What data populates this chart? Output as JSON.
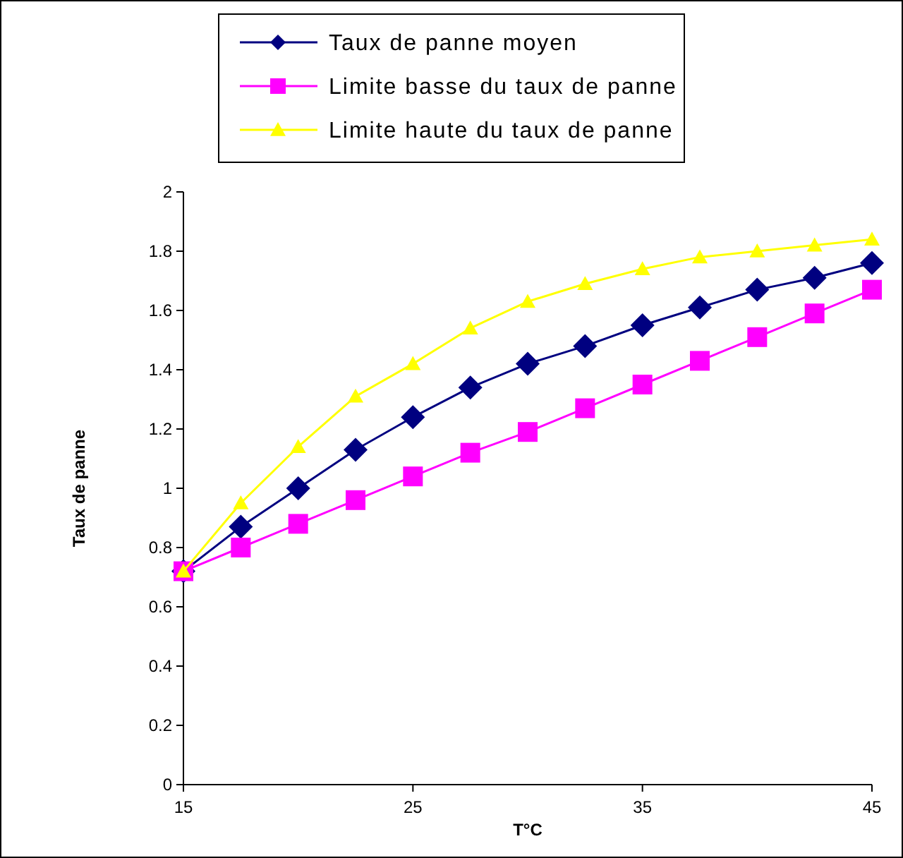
{
  "chart_data": {
    "type": "line",
    "xlabel": "T°C",
    "ylabel": "Taux de panne",
    "x": [
      15,
      17.5,
      20,
      22.5,
      25,
      27.5,
      30,
      32.5,
      35,
      37.5,
      40,
      42.5,
      45
    ],
    "xlim": [
      15,
      45
    ],
    "xticks": [
      15,
      25,
      35,
      45
    ],
    "ylim": [
      0,
      2
    ],
    "yticks": [
      0,
      0.2,
      0.4,
      0.6,
      0.8,
      1,
      1.2,
      1.4,
      1.6,
      1.8,
      2
    ],
    "grid": false,
    "legend": "top",
    "line_style": "solid",
    "series": [
      {
        "name": "Taux de panne moyen",
        "color": "#000080",
        "marker": "diamond",
        "values": [
          0.72,
          0.87,
          1.0,
          1.13,
          1.24,
          1.34,
          1.42,
          1.48,
          1.55,
          1.61,
          1.67,
          1.71,
          1.76
        ]
      },
      {
        "name": "Limite basse du taux de panne",
        "color": "#ff00ff",
        "marker": "square",
        "values": [
          0.72,
          0.8,
          0.88,
          0.96,
          1.04,
          1.12,
          1.19,
          1.27,
          1.35,
          1.43,
          1.51,
          1.59,
          1.67
        ]
      },
      {
        "name": "Limite haute du taux de panne",
        "color": "#ffff00",
        "marker": "triangle",
        "values": [
          0.72,
          0.95,
          1.14,
          1.31,
          1.42,
          1.54,
          1.63,
          1.69,
          1.74,
          1.78,
          1.8,
          1.82,
          1.84
        ]
      }
    ]
  }
}
